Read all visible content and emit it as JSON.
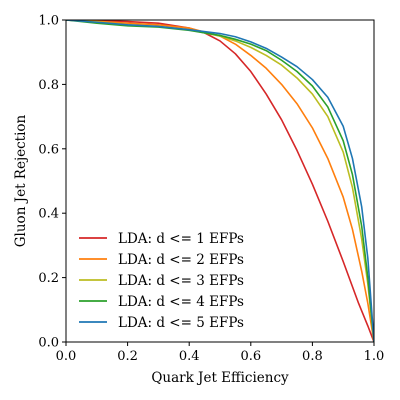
{
  "chart_data": {
    "type": "line",
    "title": "",
    "xlabel": "Quark Jet Efficiency",
    "ylabel": "Gluon Jet Rejection",
    "xlim": [
      0.0,
      1.0
    ],
    "ylim": [
      0.0,
      1.0
    ],
    "x_ticks": [
      "0.0",
      "0.2",
      "0.4",
      "0.6",
      "0.8",
      "1.0"
    ],
    "y_ticks": [
      "0.0",
      "0.2",
      "0.4",
      "0.6",
      "0.8",
      "1.0"
    ],
    "grid": false,
    "legend_position": "lower-left",
    "series": [
      {
        "name": "LDA: d <= 1 EFPs",
        "color": "#d62728",
        "points": [
          [
            0.0,
            1.0
          ],
          [
            0.1,
            0.998
          ],
          [
            0.2,
            0.995
          ],
          [
            0.3,
            0.99
          ],
          [
            0.4,
            0.975
          ],
          [
            0.45,
            0.96
          ],
          [
            0.5,
            0.935
          ],
          [
            0.55,
            0.895
          ],
          [
            0.6,
            0.84
          ],
          [
            0.65,
            0.77
          ],
          [
            0.7,
            0.69
          ],
          [
            0.75,
            0.595
          ],
          [
            0.8,
            0.49
          ],
          [
            0.85,
            0.375
          ],
          [
            0.9,
            0.25
          ],
          [
            0.95,
            0.12
          ],
          [
            0.98,
            0.05
          ],
          [
            1.0,
            0.0
          ]
        ]
      },
      {
        "name": "LDA: d <= 2 EFPs",
        "color": "#ff7f0e",
        "points": [
          [
            0.0,
            1.0
          ],
          [
            0.1,
            0.996
          ],
          [
            0.2,
            0.99
          ],
          [
            0.3,
            0.985
          ],
          [
            0.4,
            0.975
          ],
          [
            0.5,
            0.95
          ],
          [
            0.55,
            0.925
          ],
          [
            0.6,
            0.89
          ],
          [
            0.65,
            0.85
          ],
          [
            0.7,
            0.8
          ],
          [
            0.75,
            0.74
          ],
          [
            0.8,
            0.665
          ],
          [
            0.85,
            0.57
          ],
          [
            0.9,
            0.45
          ],
          [
            0.93,
            0.35
          ],
          [
            0.96,
            0.22
          ],
          [
            0.98,
            0.12
          ],
          [
            1.0,
            0.0
          ]
        ]
      },
      {
        "name": "LDA: d <= 3 EFPs",
        "color": "#bcbd22",
        "points": [
          [
            0.0,
            1.0
          ],
          [
            0.1,
            0.994
          ],
          [
            0.2,
            0.985
          ],
          [
            0.3,
            0.98
          ],
          [
            0.4,
            0.97
          ],
          [
            0.5,
            0.95
          ],
          [
            0.55,
            0.935
          ],
          [
            0.6,
            0.915
          ],
          [
            0.65,
            0.89
          ],
          [
            0.7,
            0.86
          ],
          [
            0.75,
            0.82
          ],
          [
            0.8,
            0.77
          ],
          [
            0.85,
            0.7
          ],
          [
            0.9,
            0.59
          ],
          [
            0.93,
            0.48
          ],
          [
            0.96,
            0.32
          ],
          [
            0.98,
            0.18
          ],
          [
            1.0,
            0.0
          ]
        ]
      },
      {
        "name": "LDA: d <= 4 EFPs",
        "color": "#2ca02c",
        "points": [
          [
            0.0,
            1.0
          ],
          [
            0.1,
            0.99
          ],
          [
            0.2,
            0.982
          ],
          [
            0.3,
            0.978
          ],
          [
            0.4,
            0.968
          ],
          [
            0.5,
            0.952
          ],
          [
            0.55,
            0.94
          ],
          [
            0.6,
            0.925
          ],
          [
            0.65,
            0.905
          ],
          [
            0.7,
            0.875
          ],
          [
            0.75,
            0.84
          ],
          [
            0.8,
            0.795
          ],
          [
            0.85,
            0.73
          ],
          [
            0.9,
            0.625
          ],
          [
            0.93,
            0.52
          ],
          [
            0.96,
            0.36
          ],
          [
            0.98,
            0.2
          ],
          [
            1.0,
            0.0
          ]
        ]
      },
      {
        "name": "LDA: d <= 5 EFPs",
        "color": "#1f77b4",
        "points": [
          [
            0.0,
            1.0
          ],
          [
            0.1,
            0.993
          ],
          [
            0.2,
            0.985
          ],
          [
            0.3,
            0.98
          ],
          [
            0.4,
            0.97
          ],
          [
            0.5,
            0.958
          ],
          [
            0.55,
            0.948
          ],
          [
            0.6,
            0.932
          ],
          [
            0.65,
            0.912
          ],
          [
            0.7,
            0.885
          ],
          [
            0.75,
            0.855
          ],
          [
            0.8,
            0.815
          ],
          [
            0.85,
            0.76
          ],
          [
            0.9,
            0.67
          ],
          [
            0.93,
            0.57
          ],
          [
            0.96,
            0.42
          ],
          [
            0.98,
            0.26
          ],
          [
            1.0,
            0.0
          ]
        ]
      }
    ]
  }
}
